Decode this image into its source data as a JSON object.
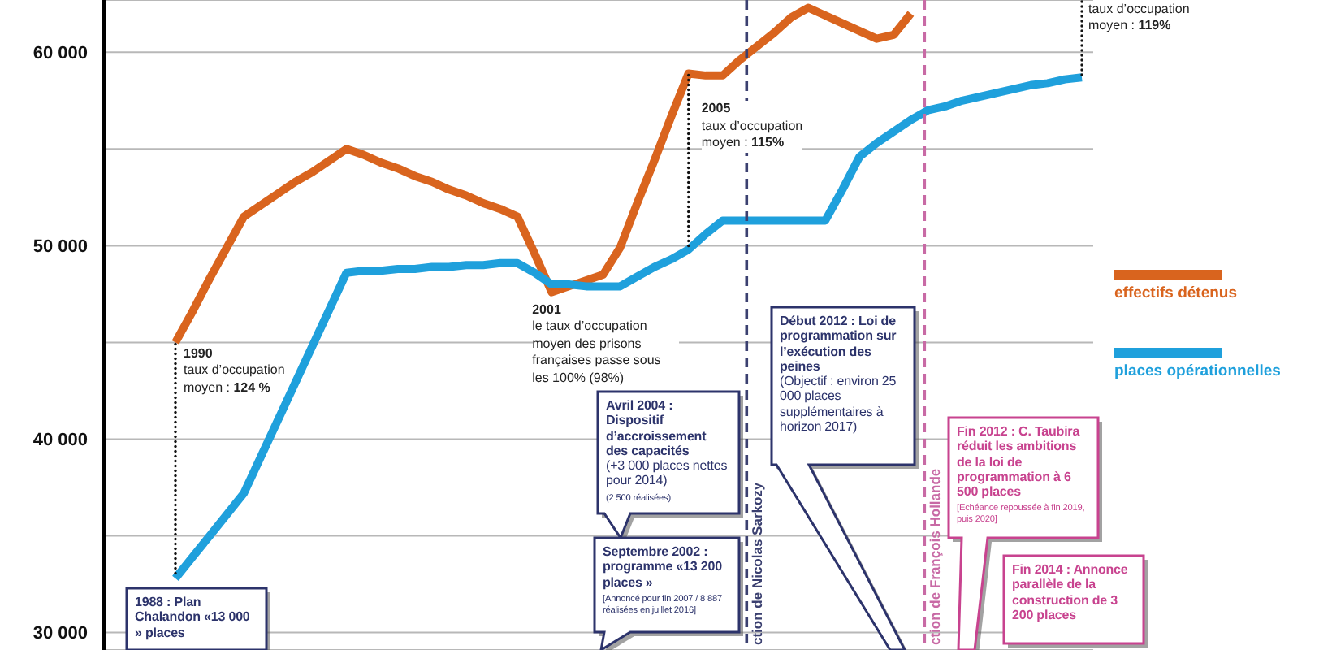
{
  "chart_data": {
    "type": "line",
    "categories": [
      null,
      null,
      null,
      null,
      null,
      null,
      null,
      null,
      null,
      null,
      null,
      null,
      null,
      null,
      null,
      null,
      null,
      null,
      null,
      null,
      null,
      null,
      null,
      null,
      null,
      null,
      null,
      null,
      null,
      null,
      null,
      null,
      null,
      null,
      null,
      null,
      null,
      null,
      null,
      null,
      null,
      null,
      null,
      null,
      null,
      null,
      null,
      null,
      null,
      null,
      null,
      null,
      null,
      null
    ],
    "series": [
      {
        "name": "effectifs détenus",
        "color": "#d9641e",
        "values": [
          45000,
          46600,
          48300,
          49900,
          51500,
          52100,
          52700,
          53300,
          53800,
          54400,
          55000,
          54700,
          54300,
          54000,
          53600,
          53300,
          52900,
          52600,
          52200,
          51900,
          51500,
          49600,
          47600,
          47900,
          48200,
          48500,
          49900,
          52200,
          54400,
          56700,
          58900,
          58800,
          58800,
          59600,
          60300,
          61000,
          61800,
          62300,
          61900,
          61500,
          61100,
          60700,
          60900,
          62000,
          null,
          null,
          null,
          null,
          null,
          null,
          null,
          null,
          null,
          null
        ]
      },
      {
        "name": "places opérationnelles",
        "color": "#1fa0dc",
        "values": [
          32800,
          33900,
          35000,
          36100,
          37200,
          39100,
          41000,
          42900,
          44800,
          46700,
          48600,
          48700,
          48700,
          48800,
          48800,
          48900,
          48900,
          49000,
          49000,
          49100,
          49100,
          48600,
          48000,
          48000,
          47900,
          47900,
          47900,
          48400,
          48900,
          49300,
          49800,
          50600,
          51300,
          51300,
          51300,
          51300,
          51300,
          51300,
          51300,
          52900,
          54600,
          55300,
          55900,
          56500,
          57000,
          57200,
          57500,
          57700,
          57900,
          58100,
          58300,
          58400,
          58600,
          58700
        ]
      }
    ],
    "ylim": [
      29100,
      62700
    ],
    "yticks": [
      {
        "value": 30000,
        "label": "30 000"
      },
      {
        "value": 35000,
        "label": null
      },
      {
        "value": 40000,
        "label": "40 000"
      },
      {
        "value": 45000,
        "label": null
      },
      {
        "value": 50000,
        "label": "50 000"
      },
      {
        "value": 55000,
        "label": null
      },
      {
        "value": 60000,
        "label": "60 000"
      }
    ],
    "grid": "y",
    "legend": "right",
    "tick_labels": "y",
    "ref_lines": [
      {
        "axis": "x",
        "label": "ction de Nicolas Sarkozy",
        "color": "#3b4070",
        "line_style": "dashed"
      },
      {
        "axis": "x",
        "label": "ction de François Hollande",
        "color": "#c86aa5",
        "line_style": "dashed"
      }
    ],
    "annotations": [
      "1990",
      "taux d’occupation",
      "moyen :",
      "124 %",
      "2001",
      "le taux d’occupation moyen des prisons françaises passe sous les 100% (98%)",
      "2005",
      "taux d’occupation",
      "moyen :",
      "115%",
      "taux d’occupation",
      "moyen :",
      "119%",
      "1988 : Plan Chalandon «13 000 » places",
      "Septembre 2002 : programme «13 200 places »",
      "[Annoncé pour fin 2007 / 8 887 réalisées en juillet 2016]",
      "Avril 2004 : Dispositif d’accroissement des capacités",
      "(+3 000 places nettes pour 2014)",
      "(2 500 réalisées)",
      "Début 2012 : Loi de programmation sur l’exécution des peines",
      "(Objectif : environ 25 000 places supplémentaires à horizon 2017)",
      "Fin 2012 : C. Taubira réduit les ambitions de la loi de programmation à 6 500 places",
      "[Echéance repoussée à fin 2019, puis 2020]",
      "Fin 2014 : Annonce parallèle de la construction de 3 200 places"
    ]
  }
}
